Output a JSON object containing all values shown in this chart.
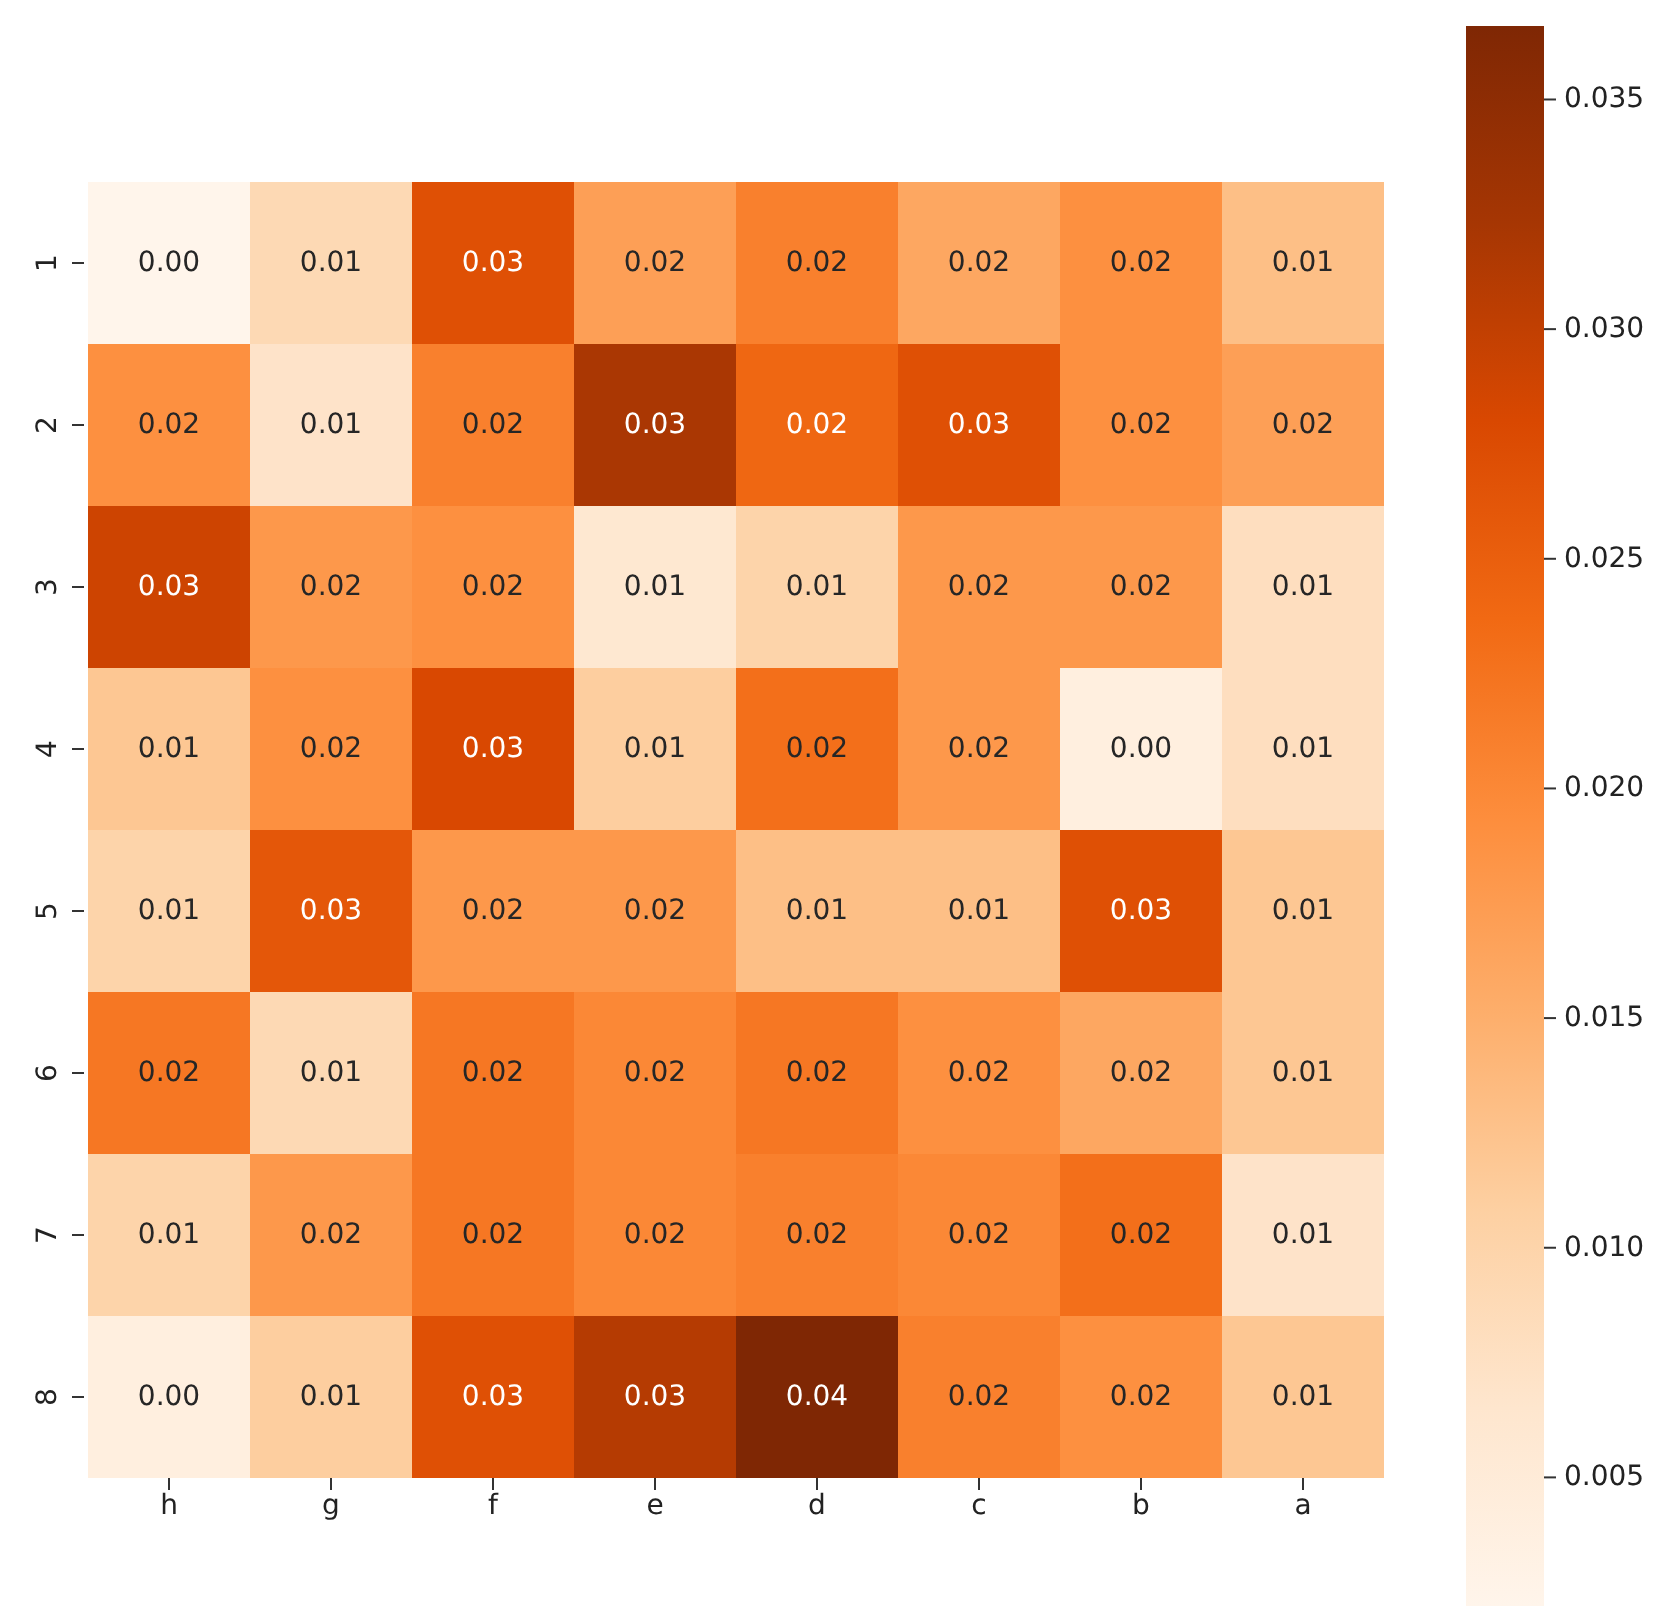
{
  "chart_data": {
    "type": "heatmap",
    "categories": [
      "h",
      "g",
      "f",
      "e",
      "d",
      "c",
      "b",
      "a"
    ],
    "y_categories": [
      "1",
      "2",
      "3",
      "4",
      "5",
      "6",
      "7",
      "8"
    ],
    "cells": [
      [
        0.0022,
        0.009,
        0.027,
        0.017,
        0.021,
        0.016,
        0.019,
        0.013
      ],
      [
        0.019,
        0.007,
        0.021,
        0.032,
        0.024,
        0.027,
        0.019,
        0.017
      ],
      [
        0.029,
        0.018,
        0.019,
        0.006,
        0.01,
        0.018,
        0.018,
        0.008
      ],
      [
        0.012,
        0.019,
        0.028,
        0.011,
        0.023,
        0.018,
        0.004,
        0.008
      ],
      [
        0.01,
        0.026,
        0.018,
        0.018,
        0.013,
        0.013,
        0.027,
        0.012
      ],
      [
        0.022,
        0.009,
        0.022,
        0.02,
        0.022,
        0.019,
        0.016,
        0.012
      ],
      [
        0.01,
        0.018,
        0.022,
        0.02,
        0.021,
        0.02,
        0.023,
        0.007
      ],
      [
        0.004,
        0.011,
        0.027,
        0.031,
        0.0366,
        0.021,
        0.019,
        0.012
      ]
    ],
    "cell_labels": [
      [
        "0.00",
        "0.01",
        "0.03",
        "0.02",
        "0.02",
        "0.02",
        "0.02",
        "0.01"
      ],
      [
        "0.02",
        "0.01",
        "0.02",
        "0.03",
        "0.02",
        "0.03",
        "0.02",
        "0.02"
      ],
      [
        "0.03",
        "0.02",
        "0.02",
        "0.01",
        "0.01",
        "0.02",
        "0.02",
        "0.01"
      ],
      [
        "0.01",
        "0.02",
        "0.03",
        "0.01",
        "0.02",
        "0.02",
        "0.00",
        "0.01"
      ],
      [
        "0.01",
        "0.03",
        "0.02",
        "0.02",
        "0.01",
        "0.01",
        "0.03",
        "0.01"
      ],
      [
        "0.02",
        "0.01",
        "0.02",
        "0.02",
        "0.02",
        "0.02",
        "0.02",
        "0.01"
      ],
      [
        "0.01",
        "0.02",
        "0.02",
        "0.02",
        "0.02",
        "0.02",
        "0.02",
        "0.01"
      ],
      [
        "0.00",
        "0.01",
        "0.03",
        "0.03",
        "0.04",
        "0.02",
        "0.02",
        "0.01"
      ]
    ],
    "clim": [
      0.0022,
      0.0366
    ],
    "cticks": [
      0.005,
      {
        "value": 0.01,
        "label": "0.010"
      },
      0.015,
      {
        "value": 0.02,
        "label": "0.020"
      },
      0.025,
      {
        "value": 0.03,
        "label": "0.030"
      },
      0.035
    ]
  }
}
